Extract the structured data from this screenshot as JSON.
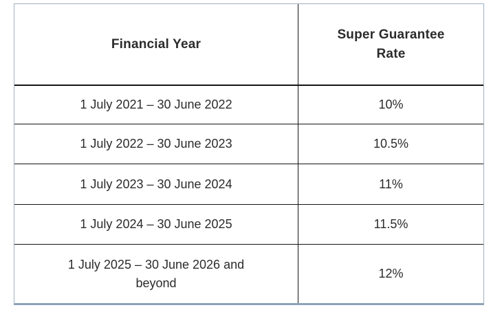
{
  "chart_data": {
    "type": "table",
    "title": "",
    "columns": [
      "Financial Year",
      "Super Guarantee Rate"
    ],
    "rows": [
      [
        "1 July 2021 – 30 June 2022",
        "10%"
      ],
      [
        "1 July 2022 – 30 June 2023",
        "10.5%"
      ],
      [
        "1 July 2023 – 30 June 2024",
        "11%"
      ],
      [
        "1 July 2024 – 30 June 2025",
        "11.5%"
      ],
      [
        "1 July 2025 – 30 June 2026 and beyond",
        "12%"
      ]
    ],
    "rates_numeric_percent": [
      10,
      10.5,
      11,
      11.5,
      12
    ]
  },
  "table": {
    "header": {
      "financial_year": "Financial Year",
      "rate": "Super Guarantee Rate"
    },
    "rows": [
      {
        "year": "1 July 2021 – 30 June 2022",
        "rate": "10%"
      },
      {
        "year": "1 July 2022 – 30 June 2023",
        "rate": "10.5%"
      },
      {
        "year": "1 July 2023 – 30 June 2024",
        "rate": "11%"
      },
      {
        "year": "1 July 2024 – 30 June 2025",
        "rate": "11.5%"
      },
      {
        "year": "1 July 2025 – 30 June 2026 and beyond",
        "rate": "12%"
      }
    ]
  },
  "colors": {
    "outer_border": "#9fb0c2",
    "bottom_border": "#8da2b8",
    "inner_border": "#141414",
    "text": "#2b2b2b",
    "background": "#ffffff"
  }
}
